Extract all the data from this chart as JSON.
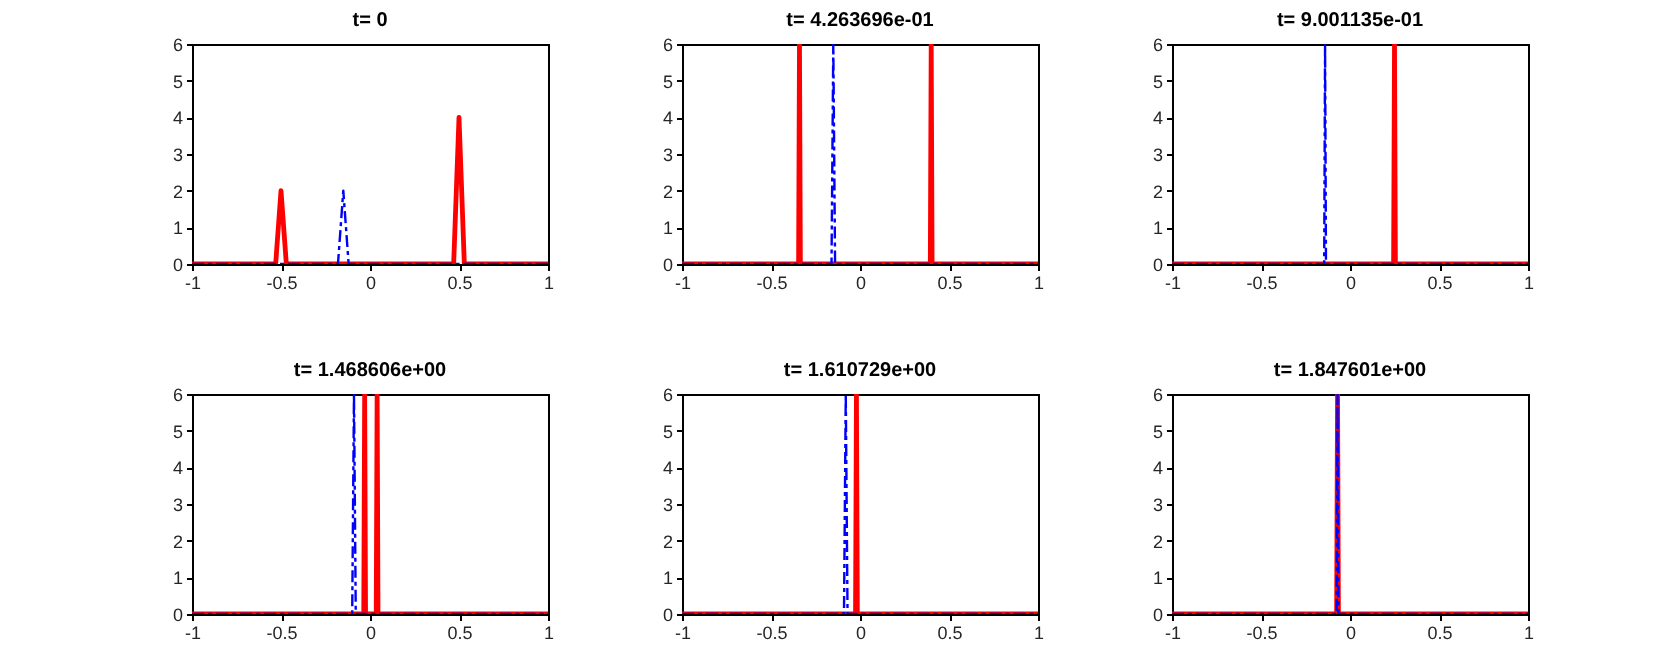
{
  "chart_data": [
    {
      "type": "line",
      "title": "t= 0",
      "xlim": [
        -1,
        1
      ],
      "xticks": [
        -1,
        -0.5,
        0,
        0.5,
        1
      ],
      "ylim": [
        0,
        6
      ],
      "yticks": [
        0,
        1,
        2,
        3,
        4,
        5,
        6
      ],
      "grid": false,
      "series": [
        {
          "color": "#ff0000",
          "line_style": "solid",
          "x": [
            -1,
            -0.53,
            -0.5,
            -0.47,
            0.47,
            0.5,
            0.53,
            1
          ],
          "values": [
            0,
            0,
            2,
            0,
            0,
            4,
            0,
            0
          ]
        },
        {
          "color": "#0000ff",
          "line_style": "dashed",
          "x": [
            -1,
            -0.18,
            -0.15,
            -0.12,
            1
          ],
          "values": [
            0,
            0,
            2,
            0,
            0
          ]
        }
      ]
    },
    {
      "type": "line",
      "title": "t= 4.263696e-01",
      "xlim": [
        -1,
        1
      ],
      "xticks": [
        -1,
        -0.5,
        0,
        0.5,
        1
      ],
      "ylim": [
        0,
        6
      ],
      "yticks": [
        0,
        1,
        2,
        3,
        4,
        5,
        6
      ],
      "grid": false,
      "series": [
        {
          "color": "#ff0000",
          "line_style": "solid",
          "x": [
            -1,
            -0.345,
            -0.34,
            -0.335,
            0.395,
            0.4,
            0.405,
            1
          ],
          "values": [
            0,
            0,
            6,
            0,
            0,
            6,
            0,
            0
          ]
        },
        {
          "color": "#0000ff",
          "line_style": "dashed",
          "x": [
            -1,
            -0.16,
            -0.15,
            -0.14,
            1
          ],
          "values": [
            0,
            0,
            6,
            0,
            0
          ]
        }
      ]
    },
    {
      "type": "line",
      "title": "t= 9.001135e-01",
      "xlim": [
        -1,
        1
      ],
      "xticks": [
        -1,
        -0.5,
        0,
        0.5,
        1
      ],
      "ylim": [
        0,
        6
      ],
      "yticks": [
        0,
        1,
        2,
        3,
        4,
        5,
        6
      ],
      "grid": false,
      "series": [
        {
          "color": "#ff0000",
          "line_style": "solid",
          "x": [
            -1,
            0.245,
            0.25,
            0.255,
            1
          ],
          "values": [
            0,
            0,
            6,
            0,
            0
          ]
        },
        {
          "color": "#0000ff",
          "line_style": "dashed",
          "x": [
            -1,
            -0.145,
            -0.14,
            -0.135,
            1
          ],
          "values": [
            0,
            0,
            6,
            0,
            0
          ]
        }
      ]
    },
    {
      "type": "line",
      "title": "t= 1.468606e+00",
      "xlim": [
        -1,
        1
      ],
      "xticks": [
        -1,
        -0.5,
        0,
        0.5,
        1
      ],
      "ylim": [
        0,
        6
      ],
      "yticks": [
        0,
        1,
        2,
        3,
        4,
        5,
        6
      ],
      "grid": false,
      "series": [
        {
          "color": "#ff0000",
          "line_style": "solid",
          "x": [
            -1,
            -0.035,
            -0.03,
            -0.025,
            0.035,
            0.04,
            0.045,
            1
          ],
          "values": [
            0,
            0,
            6,
            0,
            0,
            6,
            0,
            0
          ]
        },
        {
          "color": "#0000ff",
          "line_style": "dashed",
          "x": [
            -1,
            -0.1,
            -0.09,
            -0.08,
            1
          ],
          "values": [
            0,
            0,
            6,
            0,
            0
          ]
        }
      ]
    },
    {
      "type": "line",
      "title": "t= 1.610729e+00",
      "xlim": [
        -1,
        1
      ],
      "xticks": [
        -1,
        -0.5,
        0,
        0.5,
        1
      ],
      "ylim": [
        0,
        6
      ],
      "yticks": [
        0,
        1,
        2,
        3,
        4,
        5,
        6
      ],
      "grid": false,
      "series": [
        {
          "color": "#ff0000",
          "line_style": "solid",
          "x": [
            -1,
            -0.025,
            -0.02,
            -0.015,
            1
          ],
          "values": [
            0,
            0,
            6,
            0,
            0
          ]
        },
        {
          "color": "#0000ff",
          "line_style": "dashed",
          "x": [
            -1,
            -0.09,
            -0.08,
            -0.07,
            1
          ],
          "values": [
            0,
            0,
            6,
            0,
            0
          ]
        }
      ]
    },
    {
      "type": "line",
      "title": "t= 1.847601e+00",
      "xlim": [
        -1,
        1
      ],
      "xticks": [
        -1,
        -0.5,
        0,
        0.5,
        1
      ],
      "ylim": [
        0,
        6
      ],
      "yticks": [
        0,
        1,
        2,
        3,
        4,
        5,
        6
      ],
      "grid": false,
      "series": [
        {
          "color": "#ff0000",
          "line_style": "solid",
          "x": [
            -1,
            -0.075,
            -0.07,
            -0.065,
            1
          ],
          "values": [
            0,
            0,
            6,
            0,
            0
          ]
        },
        {
          "color": "#0000ff",
          "line_style": "dashed",
          "x": [
            -1,
            -0.075,
            -0.07,
            -0.065,
            1
          ],
          "values": [
            0,
            0,
            6,
            0,
            0
          ]
        }
      ]
    }
  ]
}
